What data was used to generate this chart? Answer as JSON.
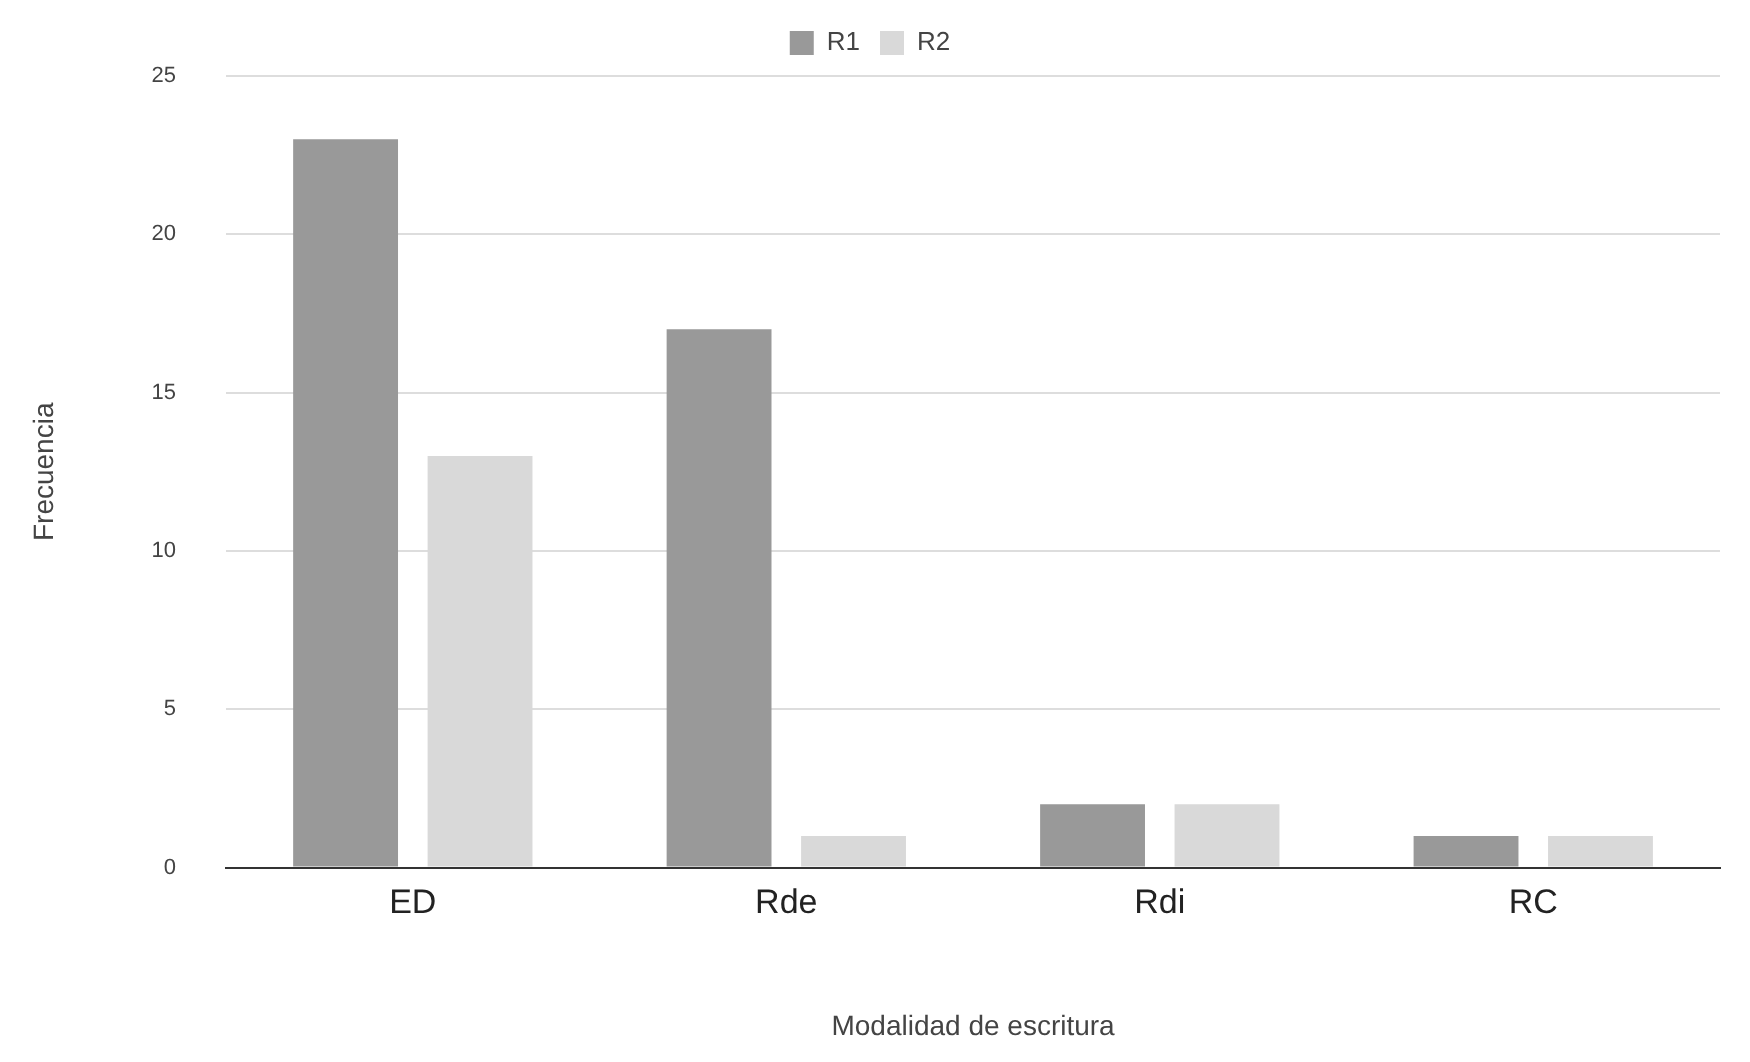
{
  "chart_data": {
    "type": "bar",
    "xlabel": "Modalidad de escritura",
    "ylabel": "Frecuencia",
    "categories": [
      "ED",
      "Rde",
      "Rdi",
      "RC"
    ],
    "series": [
      {
        "name": "R1",
        "color": "#999999",
        "values": [
          23,
          17,
          2,
          1
        ]
      },
      {
        "name": "R2",
        "color": "#d9d9d9",
        "values": [
          13,
          1,
          2,
          1
        ]
      }
    ],
    "ylim": [
      0,
      25
    ],
    "yticks": [
      0,
      5,
      10,
      15,
      20,
      25
    ],
    "grid": "y",
    "legend": "top"
  }
}
